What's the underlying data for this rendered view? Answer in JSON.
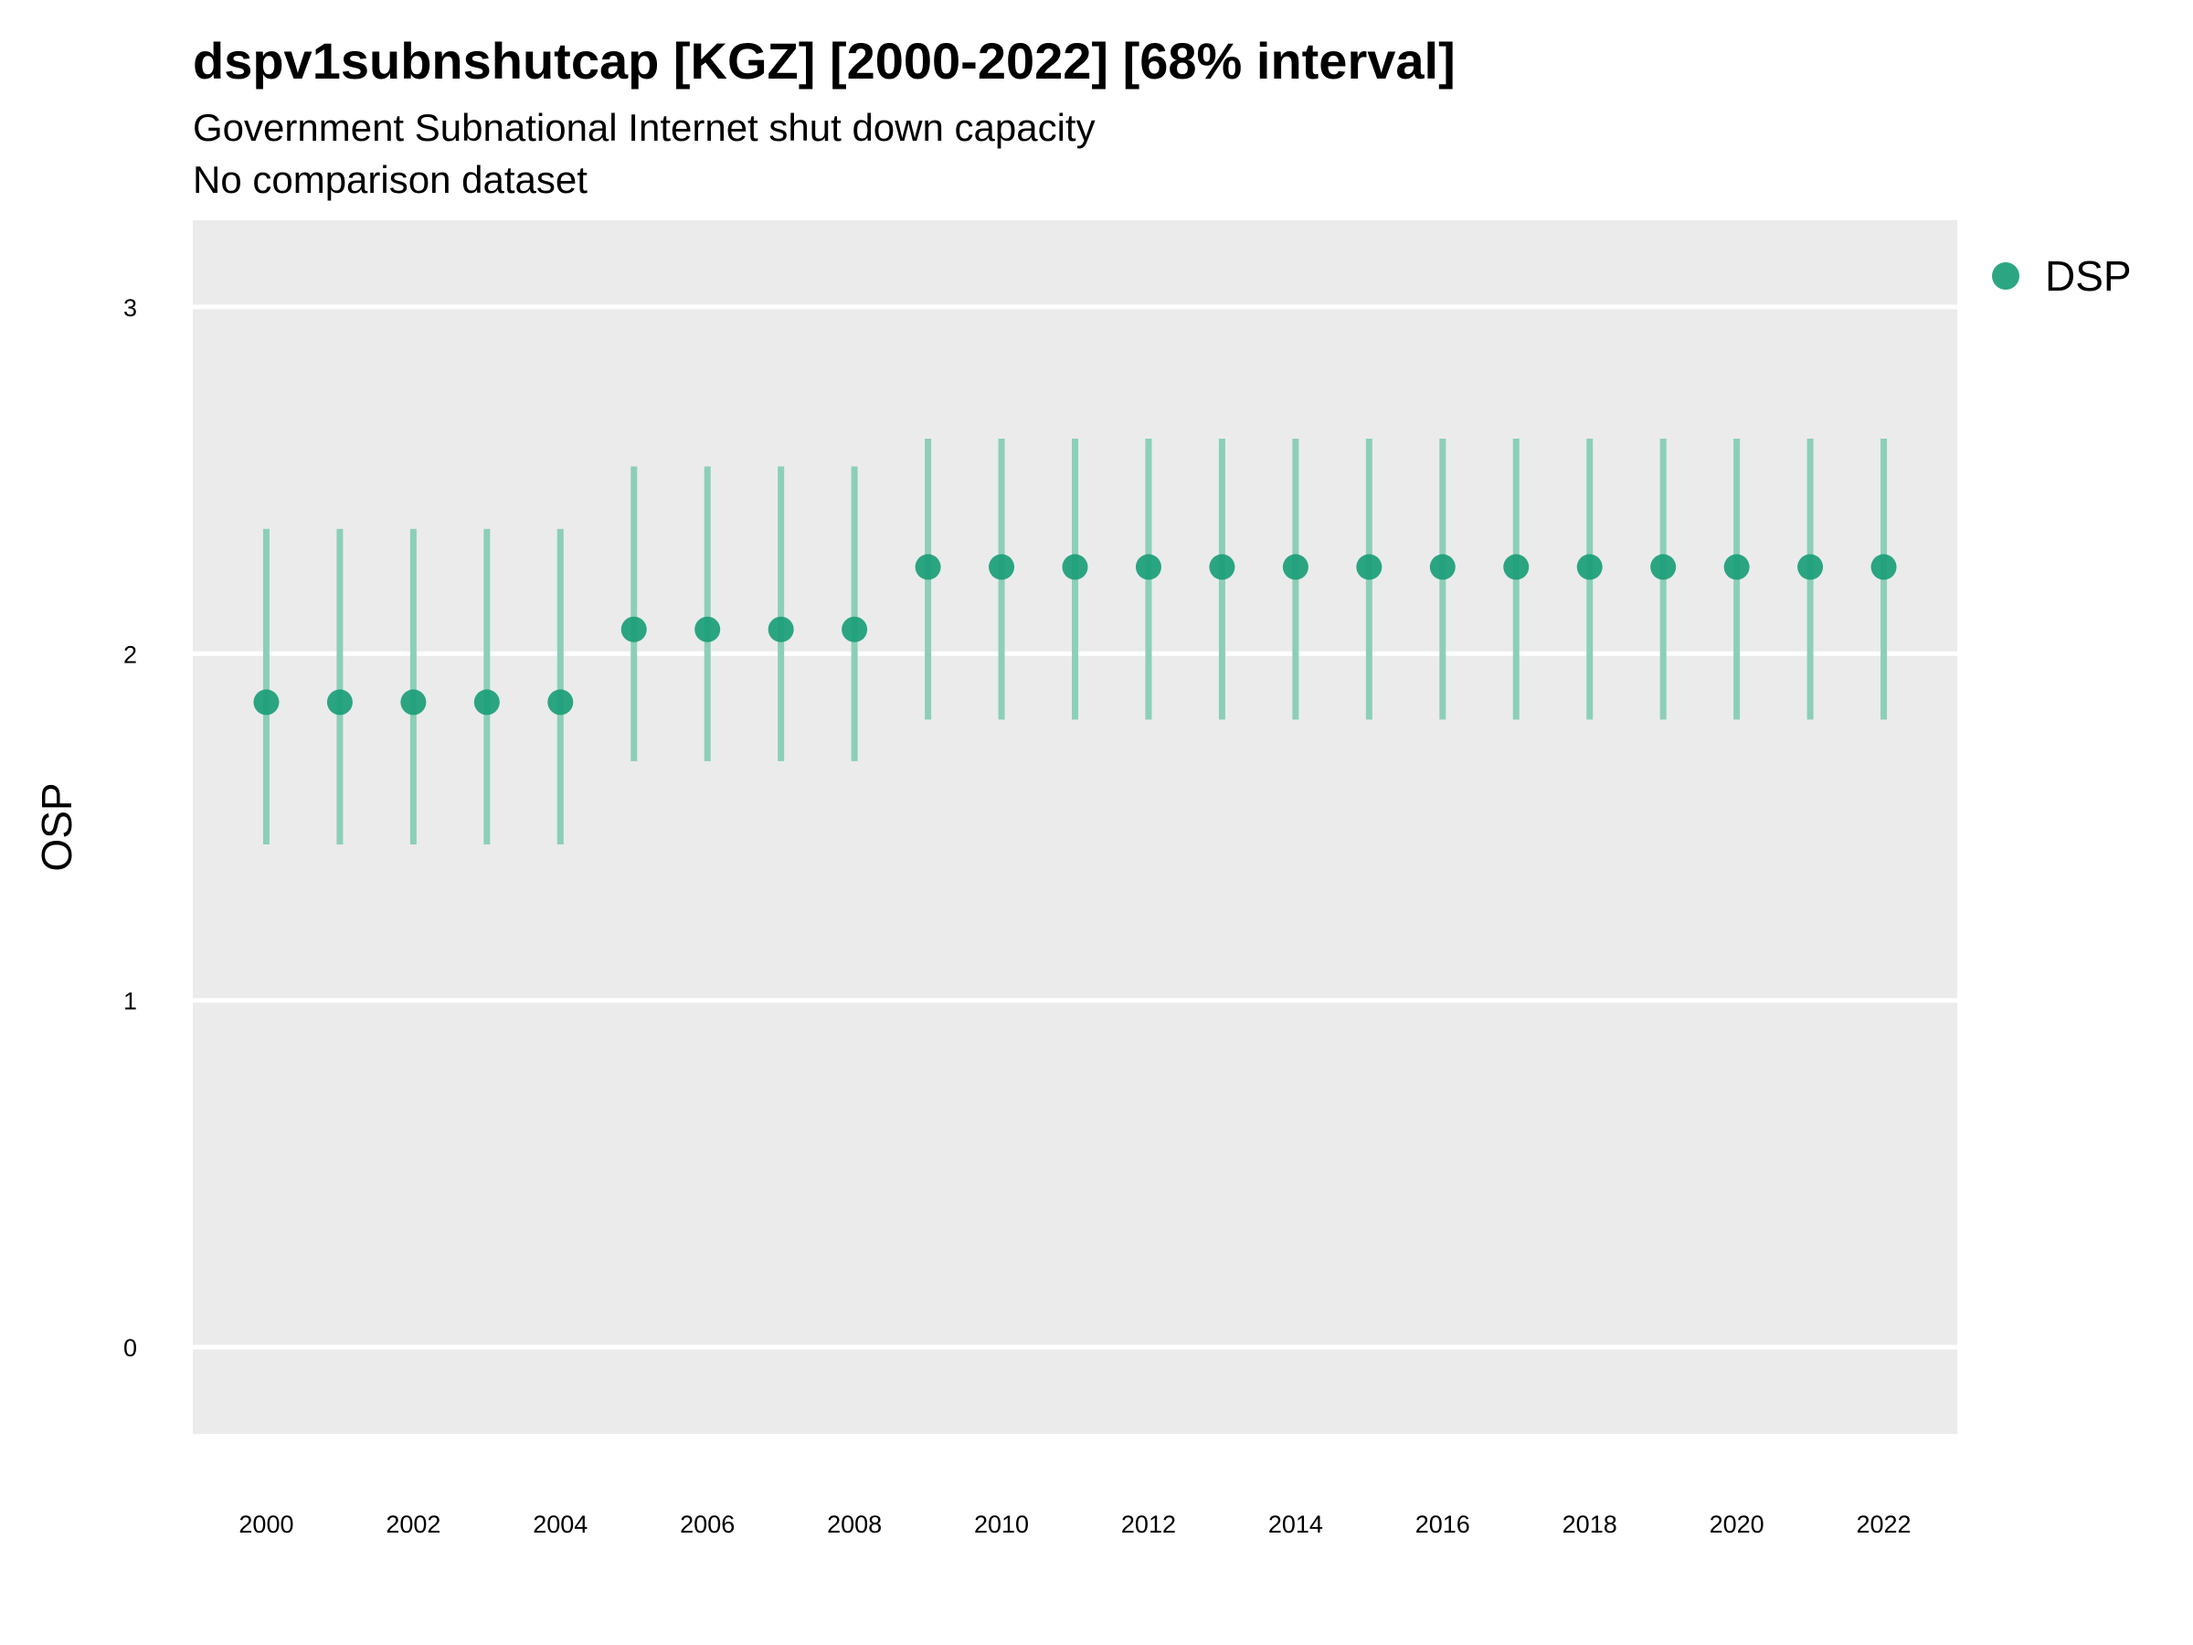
{
  "chart_data": {
    "type": "scatter",
    "title": "dspv1subnshutcap [KGZ] [2000-2022] [68% interval]",
    "subtitle": "Government Subnational Internet shut down capacity",
    "subtitle2": "No comparison dataset",
    "xlabel": "",
    "ylabel": "OSP",
    "xlim": [
      1999,
      2023
    ],
    "ylim": [
      -0.25,
      3.25
    ],
    "x_ticks": [
      2000,
      2002,
      2004,
      2006,
      2008,
      2010,
      2012,
      2014,
      2016,
      2018,
      2020,
      2022
    ],
    "y_ticks": [
      0,
      1,
      2,
      3
    ],
    "grid": true,
    "legend_position": "right",
    "colors": {
      "point": "#1a9e77",
      "interval": "#8ccfb8",
      "panel": "#ebebeb",
      "grid": "#ffffff"
    },
    "series": [
      {
        "name": "DSP",
        "x": [
          2000,
          2001,
          2002,
          2003,
          2004,
          2005,
          2006,
          2007,
          2008,
          2009,
          2010,
          2011,
          2012,
          2013,
          2014,
          2015,
          2016,
          2017,
          2018,
          2019,
          2020,
          2021,
          2022
        ],
        "y": [
          1.86,
          1.86,
          1.86,
          1.86,
          1.86,
          2.07,
          2.07,
          2.07,
          2.07,
          2.25,
          2.25,
          2.25,
          2.25,
          2.25,
          2.25,
          2.25,
          2.25,
          2.25,
          2.25,
          2.25,
          2.25,
          2.25,
          2.25
        ],
        "lower": [
          1.45,
          1.45,
          1.45,
          1.45,
          1.45,
          1.69,
          1.69,
          1.69,
          1.69,
          1.81,
          1.81,
          1.81,
          1.81,
          1.81,
          1.81,
          1.81,
          1.81,
          1.81,
          1.81,
          1.81,
          1.81,
          1.81,
          1.81
        ],
        "upper": [
          2.36,
          2.36,
          2.36,
          2.36,
          2.36,
          2.54,
          2.54,
          2.54,
          2.54,
          2.62,
          2.62,
          2.62,
          2.62,
          2.62,
          2.62,
          2.62,
          2.62,
          2.62,
          2.62,
          2.62,
          2.62,
          2.62,
          2.62
        ]
      }
    ]
  }
}
